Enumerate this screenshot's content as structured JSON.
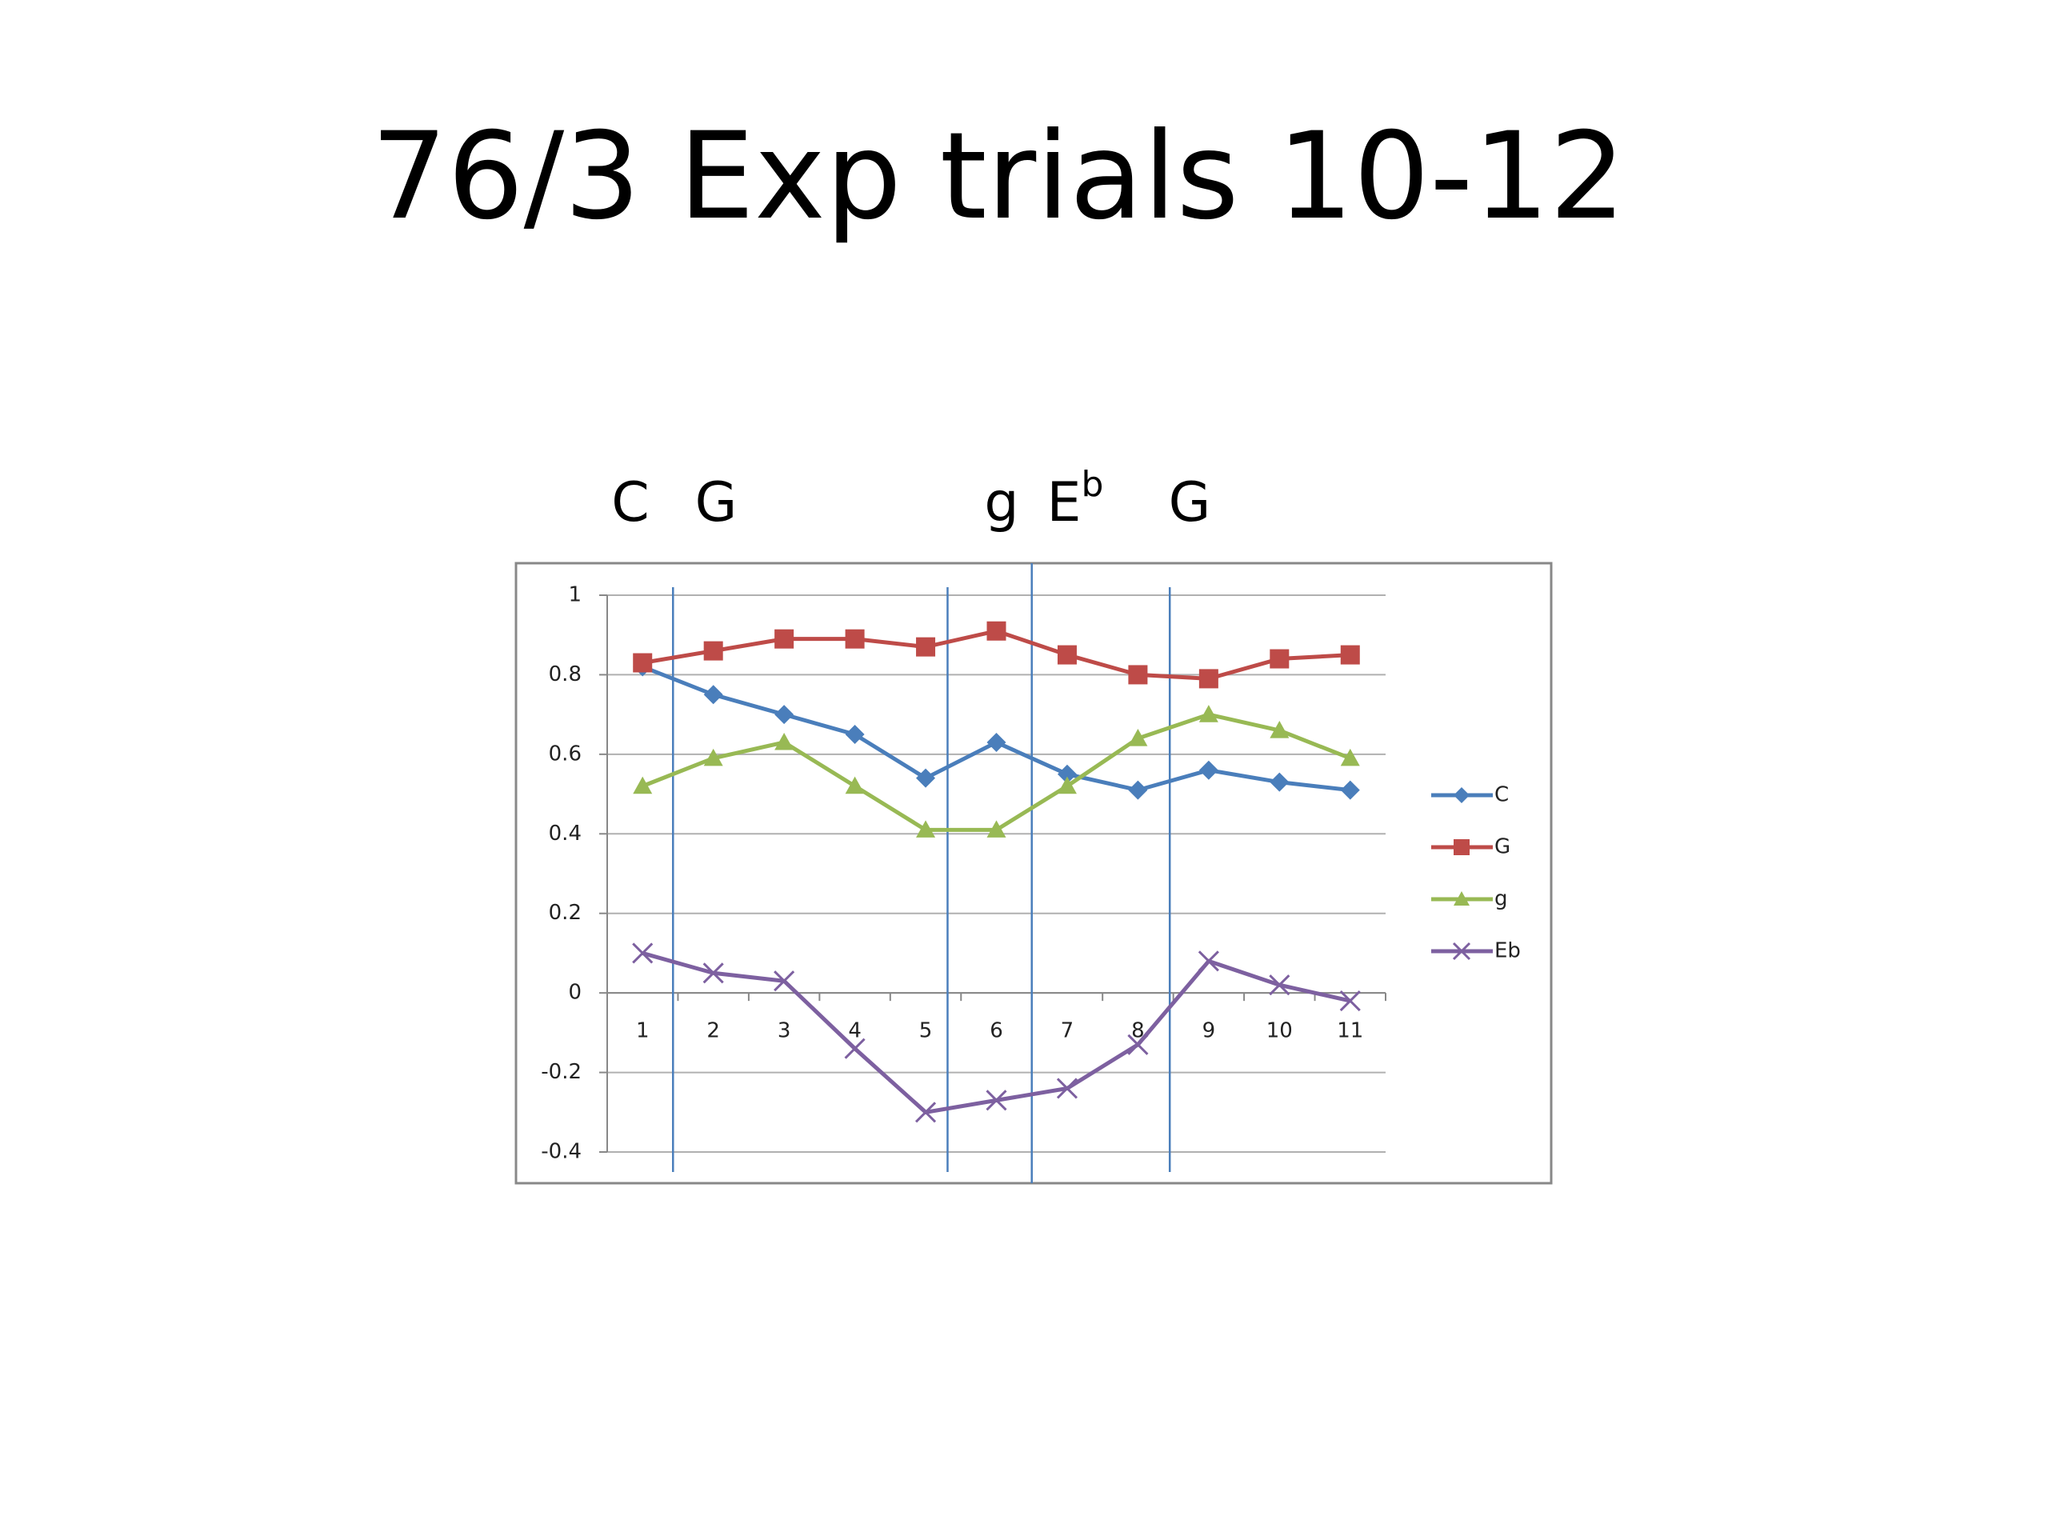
{
  "chart_data": {
    "type": "line",
    "title": "76/3 Exp trials 10-12",
    "annotations": [
      {
        "text": "C"
      },
      {
        "text": "G"
      },
      {
        "text": "g"
      },
      {
        "text": "E",
        "sup": "b"
      },
      {
        "text": "G"
      }
    ],
    "categories": [
      "1",
      "2",
      "3",
      "4",
      "5",
      "6",
      "7",
      "8",
      "9",
      "10",
      "11"
    ],
    "series": [
      {
        "name": "C",
        "color": "#4a7ebb",
        "marker": "diamond",
        "values": [
          0.82,
          0.75,
          0.7,
          0.65,
          0.54,
          0.63,
          0.55,
          0.51,
          0.56,
          0.53,
          0.51
        ]
      },
      {
        "name": "G",
        "color": "#be4b48",
        "marker": "square",
        "values": [
          0.83,
          0.86,
          0.89,
          0.89,
          0.87,
          0.91,
          0.85,
          0.8,
          0.79,
          0.84,
          0.85
        ]
      },
      {
        "name": "g",
        "color": "#98b954",
        "marker": "triangle",
        "values": [
          0.52,
          0.59,
          0.63,
          0.52,
          0.41,
          0.41,
          0.52,
          0.64,
          0.7,
          0.66,
          0.59
        ]
      },
      {
        "name": "Eb",
        "color": "#7d60a0",
        "marker": "x",
        "values": [
          0.1,
          0.05,
          0.03,
          -0.14,
          -0.3,
          -0.27,
          -0.24,
          -0.13,
          0.08,
          0.02,
          -0.02
        ]
      }
    ],
    "vlines": [
      1.43,
      5.31,
      6.5,
      8.45
    ],
    "vline_color": "#4a7ebb",
    "ylim": [
      -0.4,
      1
    ],
    "yticks": [
      -0.4,
      -0.2,
      0,
      0.2,
      0.4,
      0.6,
      0.8,
      1
    ],
    "grid": true
  }
}
